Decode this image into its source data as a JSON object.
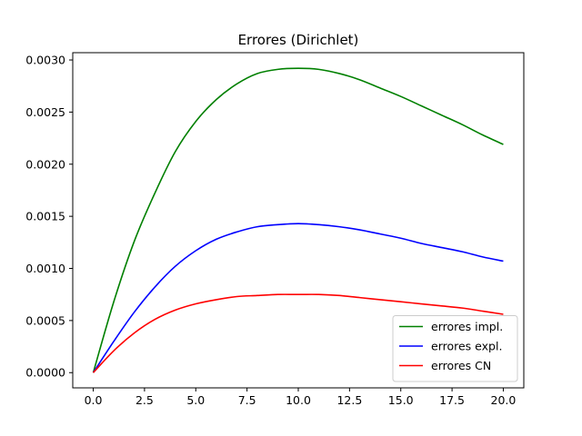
{
  "chart_data": {
    "type": "line",
    "title": "Errores (Dirichlet)",
    "xlabel": "",
    "ylabel": "",
    "xlim": [
      -1.0,
      21.0
    ],
    "ylim": [
      -0.000146,
      0.00307
    ],
    "x_ticks": [
      0.0,
      2.5,
      5.0,
      7.5,
      10.0,
      12.5,
      15.0,
      17.5,
      20.0
    ],
    "x_tick_labels": [
      "0.0",
      "2.5",
      "5.0",
      "7.5",
      "10.0",
      "12.5",
      "15.0",
      "17.5",
      "20.0"
    ],
    "y_ticks": [
      0.0,
      0.0005,
      0.001,
      0.0015,
      0.002,
      0.0025,
      0.003
    ],
    "y_tick_labels": [
      "0.0000",
      "0.0005",
      "0.0010",
      "0.0015",
      "0.0020",
      "0.0025",
      "0.0030"
    ],
    "grid": false,
    "legend_position": "lower-right",
    "series": [
      {
        "name": "errores impl.",
        "color": "#008000",
        "x": [
          0,
          1,
          2,
          3,
          4,
          5,
          6,
          7,
          8,
          9,
          10,
          11,
          12,
          13,
          14,
          15,
          16,
          17,
          18,
          19,
          20
        ],
        "y": [
          0.0,
          0.00068,
          0.00126,
          0.00172,
          0.00212,
          0.00241,
          0.00262,
          0.00277,
          0.00287,
          0.00291,
          0.00292,
          0.00291,
          0.00287,
          0.00281,
          0.00273,
          0.00265,
          0.00256,
          0.00247,
          0.00238,
          0.00228,
          0.00219
        ]
      },
      {
        "name": "errores expl.",
        "color": "#0000ff",
        "x": [
          0,
          1,
          2,
          3,
          4,
          5,
          6,
          7,
          8,
          9,
          10,
          11,
          12,
          13,
          14,
          15,
          16,
          17,
          18,
          19,
          20
        ],
        "y": [
          0.0,
          0.0003,
          0.00058,
          0.00082,
          0.00102,
          0.00117,
          0.00128,
          0.00135,
          0.0014,
          0.00142,
          0.00143,
          0.00142,
          0.0014,
          0.00137,
          0.00133,
          0.00129,
          0.00124,
          0.0012,
          0.00116,
          0.00111,
          0.00107
        ]
      },
      {
        "name": "errores CN",
        "color": "#ff0000",
        "x": [
          0,
          1,
          2,
          3,
          4,
          5,
          6,
          7,
          8,
          9,
          10,
          11,
          12,
          13,
          14,
          15,
          16,
          17,
          18,
          19,
          20
        ],
        "y": [
          0.0,
          0.00021,
          0.00038,
          0.00051,
          0.0006,
          0.00066,
          0.0007,
          0.00073,
          0.00074,
          0.00075,
          0.00075,
          0.00075,
          0.00074,
          0.00072,
          0.0007,
          0.00068,
          0.00066,
          0.00064,
          0.00062,
          0.00059,
          0.00056
        ]
      }
    ]
  }
}
